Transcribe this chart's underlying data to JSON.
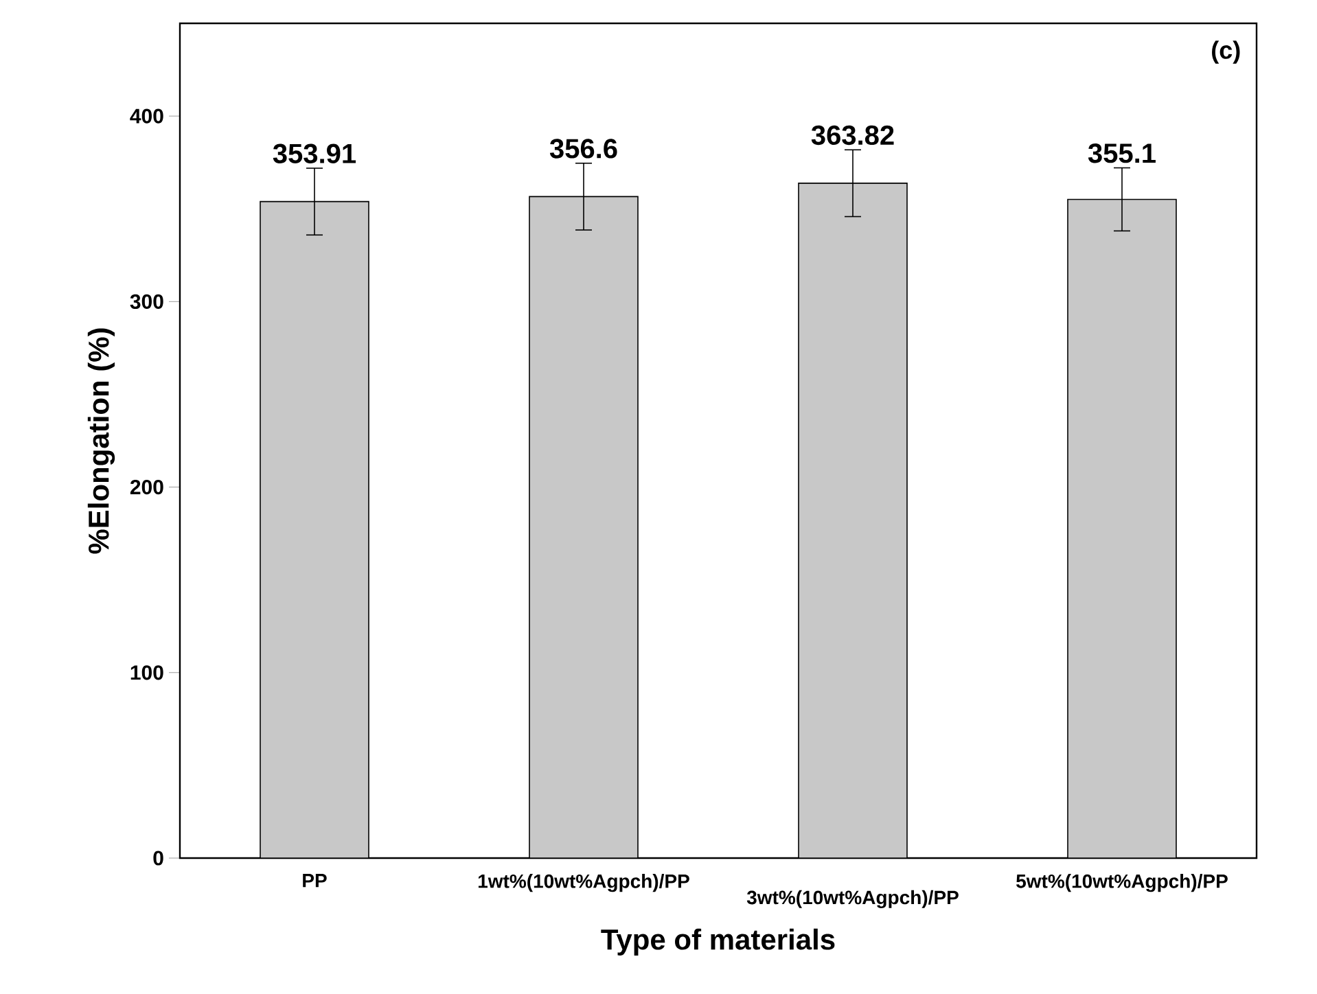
{
  "chart_data": {
    "type": "bar",
    "xlabel": "Type of materials",
    "ylabel": "%Elongation (%)",
    "categories": [
      "PP",
      "1wt%(10wt%Agpch)/PP",
      "3wt%(10wt%Agpch)/PP",
      "5wt%(10wt%Agpch)/PP"
    ],
    "values": [
      353.91,
      356.6,
      363.82,
      355.1
    ],
    "errors": [
      18,
      18,
      18,
      17
    ],
    "color": "#c8c8c8",
    "ylim": [
      0,
      450
    ],
    "yticks": [
      0,
      100,
      200,
      300,
      400
    ],
    "data_labels": true,
    "grid": false,
    "annotations": [
      "(c)"
    ]
  }
}
